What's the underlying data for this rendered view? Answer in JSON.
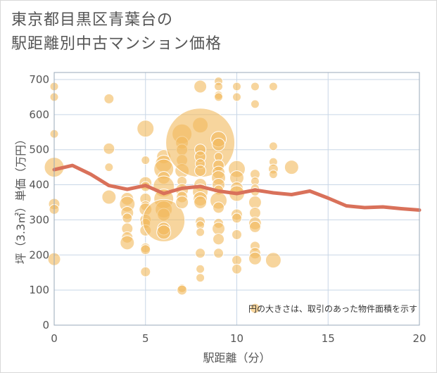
{
  "title": {
    "line1": "東京都目黒区青葉台の",
    "line2": "駅距離別中古マンション価格"
  },
  "chart_data": {
    "type": "scatter",
    "xlabel": "駅距離（分）",
    "ylabel": "坪（3.3㎡）単価（万円）",
    "xlim": [
      0,
      20
    ],
    "ylim": [
      0,
      720
    ],
    "xticks": [
      0,
      5,
      10,
      15,
      20
    ],
    "yticks": [
      0,
      100,
      200,
      300,
      400,
      500,
      600,
      700
    ],
    "grid": true,
    "annotation": "円の大きさは、取引のあった物件面積を示す",
    "colors": {
      "bubble": "#f2b95c",
      "line": "#d9715a",
      "grid": "#c8d6e6",
      "plot_border": "#9aa8b8"
    },
    "bubbles": [
      {
        "x": 0,
        "y": 680,
        "s": 6
      },
      {
        "x": 0,
        "y": 650,
        "s": 6
      },
      {
        "x": 0,
        "y": 545,
        "s": 6
      },
      {
        "x": 0,
        "y": 450,
        "s": 14
      },
      {
        "x": 0,
        "y": 345,
        "s": 8
      },
      {
        "x": 0,
        "y": 330,
        "s": 7
      },
      {
        "x": 0,
        "y": 188,
        "s": 9
      },
      {
        "x": 3,
        "y": 645,
        "s": 7
      },
      {
        "x": 3,
        "y": 503,
        "s": 8
      },
      {
        "x": 3,
        "y": 450,
        "s": 6
      },
      {
        "x": 3,
        "y": 365,
        "s": 10
      },
      {
        "x": 4,
        "y": 360,
        "s": 9
      },
      {
        "x": 4,
        "y": 345,
        "s": 11
      },
      {
        "x": 4,
        "y": 320,
        "s": 9
      },
      {
        "x": 4,
        "y": 305,
        "s": 7
      },
      {
        "x": 4,
        "y": 275,
        "s": 8
      },
      {
        "x": 4,
        "y": 250,
        "s": 8
      },
      {
        "x": 4,
        "y": 235,
        "s": 10
      },
      {
        "x": 5,
        "y": 560,
        "s": 12
      },
      {
        "x": 5,
        "y": 470,
        "s": 6
      },
      {
        "x": 5,
        "y": 405,
        "s": 9
      },
      {
        "x": 5,
        "y": 395,
        "s": 7
      },
      {
        "x": 5,
        "y": 360,
        "s": 8
      },
      {
        "x": 5,
        "y": 340,
        "s": 7
      },
      {
        "x": 5,
        "y": 330,
        "s": 9
      },
      {
        "x": 5,
        "y": 300,
        "s": 8
      },
      {
        "x": 5,
        "y": 290,
        "s": 7
      },
      {
        "x": 5,
        "y": 270,
        "s": 8
      },
      {
        "x": 5,
        "y": 220,
        "s": 7
      },
      {
        "x": 5,
        "y": 215,
        "s": 7
      },
      {
        "x": 5,
        "y": 152,
        "s": 7
      },
      {
        "x": 6,
        "y": 480,
        "s": 10
      },
      {
        "x": 6,
        "y": 460,
        "s": 12
      },
      {
        "x": 6,
        "y": 445,
        "s": 14
      },
      {
        "x": 6,
        "y": 420,
        "s": 9
      },
      {
        "x": 6,
        "y": 395,
        "s": 15
      },
      {
        "x": 6,
        "y": 360,
        "s": 14
      },
      {
        "x": 6,
        "y": 330,
        "s": 12
      },
      {
        "x": 6,
        "y": 315,
        "s": 9
      },
      {
        "x": 6,
        "y": 298,
        "s": 30
      },
      {
        "x": 6,
        "y": 275,
        "s": 9
      },
      {
        "x": 6,
        "y": 265,
        "s": 10
      },
      {
        "x": 7,
        "y": 545,
        "s": 14
      },
      {
        "x": 7,
        "y": 520,
        "s": 9
      },
      {
        "x": 7,
        "y": 500,
        "s": 8
      },
      {
        "x": 7,
        "y": 470,
        "s": 8
      },
      {
        "x": 7,
        "y": 440,
        "s": 10
      },
      {
        "x": 7,
        "y": 410,
        "s": 7
      },
      {
        "x": 7,
        "y": 385,
        "s": 9
      },
      {
        "x": 7,
        "y": 365,
        "s": 8
      },
      {
        "x": 7,
        "y": 350,
        "s": 9
      },
      {
        "x": 7,
        "y": 105,
        "s": 6
      },
      {
        "x": 7,
        "y": 100,
        "s": 7
      },
      {
        "x": 8,
        "y": 680,
        "s": 9
      },
      {
        "x": 8,
        "y": 570,
        "s": 11
      },
      {
        "x": 8,
        "y": 520,
        "s": 49
      },
      {
        "x": 8,
        "y": 500,
        "s": 8
      },
      {
        "x": 8,
        "y": 480,
        "s": 8
      },
      {
        "x": 8,
        "y": 460,
        "s": 7
      },
      {
        "x": 8,
        "y": 440,
        "s": 8
      },
      {
        "x": 8,
        "y": 400,
        "s": 9
      },
      {
        "x": 8,
        "y": 380,
        "s": 11
      },
      {
        "x": 8,
        "y": 360,
        "s": 10
      },
      {
        "x": 8,
        "y": 350,
        "s": 9
      },
      {
        "x": 8,
        "y": 295,
        "s": 7
      },
      {
        "x": 8,
        "y": 285,
        "s": 6
      },
      {
        "x": 8,
        "y": 265,
        "s": 6
      },
      {
        "x": 8,
        "y": 205,
        "s": 7
      },
      {
        "x": 8,
        "y": 160,
        "s": 6
      },
      {
        "x": 8,
        "y": 135,
        "s": 6
      },
      {
        "x": 9,
        "y": 695,
        "s": 6
      },
      {
        "x": 9,
        "y": 680,
        "s": 6
      },
      {
        "x": 9,
        "y": 655,
        "s": 6
      },
      {
        "x": 9,
        "y": 650,
        "s": 6
      },
      {
        "x": 9,
        "y": 530,
        "s": 11
      },
      {
        "x": 9,
        "y": 515,
        "s": 9
      },
      {
        "x": 9,
        "y": 480,
        "s": 6
      },
      {
        "x": 9,
        "y": 455,
        "s": 8
      },
      {
        "x": 9,
        "y": 435,
        "s": 9
      },
      {
        "x": 9,
        "y": 420,
        "s": 10
      },
      {
        "x": 9,
        "y": 400,
        "s": 9
      },
      {
        "x": 9,
        "y": 385,
        "s": 7
      },
      {
        "x": 9,
        "y": 355,
        "s": 12
      },
      {
        "x": 9,
        "y": 335,
        "s": 8
      },
      {
        "x": 9,
        "y": 290,
        "s": 7
      },
      {
        "x": 9,
        "y": 275,
        "s": 9
      },
      {
        "x": 9,
        "y": 245,
        "s": 8
      },
      {
        "x": 9,
        "y": 205,
        "s": 7
      },
      {
        "x": 10,
        "y": 680,
        "s": 6
      },
      {
        "x": 10,
        "y": 650,
        "s": 6
      },
      {
        "x": 10,
        "y": 445,
        "s": 12
      },
      {
        "x": 10,
        "y": 420,
        "s": 10
      },
      {
        "x": 10,
        "y": 390,
        "s": 9
      },
      {
        "x": 10,
        "y": 375,
        "s": 11
      },
      {
        "x": 10,
        "y": 315,
        "s": 8
      },
      {
        "x": 10,
        "y": 305,
        "s": 7
      },
      {
        "x": 10,
        "y": 258,
        "s": 7
      },
      {
        "x": 10,
        "y": 185,
        "s": 7
      },
      {
        "x": 10,
        "y": 160,
        "s": 7
      },
      {
        "x": 11,
        "y": 680,
        "s": 6
      },
      {
        "x": 11,
        "y": 630,
        "s": 6
      },
      {
        "x": 11,
        "y": 430,
        "s": 7
      },
      {
        "x": 11,
        "y": 410,
        "s": 6
      },
      {
        "x": 11,
        "y": 390,
        "s": 6
      },
      {
        "x": 11,
        "y": 380,
        "s": 6
      },
      {
        "x": 11,
        "y": 350,
        "s": 9
      },
      {
        "x": 11,
        "y": 320,
        "s": 8
      },
      {
        "x": 11,
        "y": 290,
        "s": 9
      },
      {
        "x": 11,
        "y": 280,
        "s": 8
      },
      {
        "x": 11,
        "y": 225,
        "s": 7
      },
      {
        "x": 11,
        "y": 205,
        "s": 8
      },
      {
        "x": 11,
        "y": 190,
        "s": 9
      },
      {
        "x": 11,
        "y": 48,
        "s": 7
      },
      {
        "x": 12,
        "y": 680,
        "s": 6
      },
      {
        "x": 12,
        "y": 510,
        "s": 6
      },
      {
        "x": 12,
        "y": 465,
        "s": 6
      },
      {
        "x": 12,
        "y": 445,
        "s": 7
      },
      {
        "x": 12,
        "y": 430,
        "s": 6
      },
      {
        "x": 12,
        "y": 185,
        "s": 11
      },
      {
        "x": 13,
        "y": 450,
        "s": 10
      }
    ],
    "series": [
      {
        "x": [
          0,
          1,
          2,
          3,
          4,
          5,
          6,
          7,
          8,
          9,
          10,
          11,
          12,
          13,
          14,
          15,
          16,
          17,
          18,
          19,
          20
        ],
        "values": [
          443,
          455,
          430,
          398,
          387,
          398,
          375,
          390,
          395,
          382,
          375,
          385,
          377,
          372,
          382,
          362,
          340,
          335,
          337,
          332,
          328
        ]
      }
    ]
  }
}
